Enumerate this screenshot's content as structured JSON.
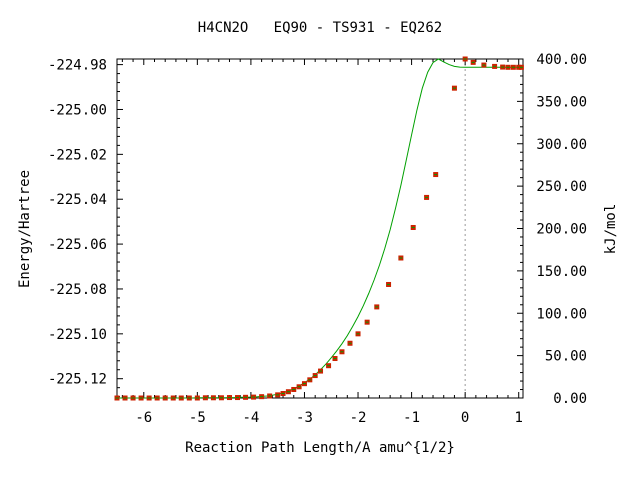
{
  "chart_data": {
    "type": "line",
    "title": "H4CN2O   EQ90 - TS931 - EQ262",
    "xlabel": "Reaction Path Length/A amu^{1/2}",
    "ylabel": "Energy/Hartree",
    "y2label": "kJ/mol",
    "xlim": [
      -6.5,
      1.08
    ],
    "ylim": [
      -225.1286,
      -224.9775
    ],
    "y2lim": [
      0,
      400
    ],
    "x_ticks": [
      -6,
      -5,
      -4,
      -3,
      -2,
      -1,
      0,
      1
    ],
    "x_tick_labels": [
      "-6",
      "-5",
      "-4",
      "-3",
      "-2",
      "-1",
      "0",
      "1"
    ],
    "y_ticks": [
      -225.12,
      -225.1,
      -225.08,
      -225.06,
      -225.04,
      -225.02,
      -225.0,
      -224.98
    ],
    "y_tick_labels": [
      "-225.12",
      "-225.10",
      "-225.08",
      "-225.06",
      "-225.04",
      "-225.02",
      "-225.00",
      "-224.98"
    ],
    "y2_ticks": [
      0,
      50,
      100,
      150,
      200,
      250,
      300,
      350,
      400
    ],
    "y2_tick_labels": [
      "0.00",
      "50.00",
      "100.00",
      "150.00",
      "200.00",
      "250.00",
      "300.00",
      "350.00",
      "400.00"
    ],
    "ts_x": 0,
    "line_color": "#00a000",
    "marker_color": "#cc2200",
    "ts_line_color": "#999999",
    "series": [
      {
        "x": [
          -6.5,
          -6.4,
          -6.3,
          -6.2,
          -6.1,
          -6.0,
          -5.9,
          -5.8,
          -5.7,
          -5.6,
          -5.5,
          -5.4,
          -5.3,
          -5.2,
          -5.1,
          -5.0,
          -4.9,
          -4.8,
          -4.7,
          -4.6,
          -4.5,
          -4.4,
          -4.3,
          -4.2,
          -4.1,
          -4.0,
          -3.9,
          -3.8,
          -3.7,
          -3.6,
          -3.5,
          -3.4,
          -3.3,
          -3.2,
          -3.1,
          -3.0,
          -2.9,
          -2.8,
          -2.7,
          -2.6,
          -2.5,
          -2.4,
          -2.3,
          -2.2,
          -2.1,
          -2.0,
          -1.9,
          -1.8,
          -1.7,
          -1.6,
          -1.5,
          -1.4,
          -1.3,
          -1.2,
          -1.1,
          -1.0,
          -0.9,
          -0.8,
          -0.7,
          -0.6,
          -0.5,
          -0.4,
          -0.3,
          -0.2,
          -0.1,
          0.0,
          0.15,
          0.3,
          0.45,
          0.6,
          0.7,
          0.8,
          0.9,
          1.0,
          1.08
        ],
        "y": [
          -225.1286,
          -225.1286,
          -225.1286,
          -225.1286,
          -225.1286,
          -225.1286,
          -225.1286,
          -225.1286,
          -225.1286,
          -225.1286,
          -225.1286,
          -225.1286,
          -225.1286,
          -225.1286,
          -225.1286,
          -225.1285,
          -225.1285,
          -225.1285,
          -225.1285,
          -225.1285,
          -225.1285,
          -225.1284,
          -225.1284,
          -225.1283,
          -225.1283,
          -225.1282,
          -225.1281,
          -225.1279,
          -225.1277,
          -225.1274,
          -225.1269,
          -225.1263,
          -225.1255,
          -225.1245,
          -225.1233,
          -225.1218,
          -225.1202,
          -225.1182,
          -225.116,
          -225.1135,
          -225.1107,
          -225.1077,
          -225.1044,
          -225.1008,
          -225.0967,
          -225.0923,
          -225.0874,
          -225.082,
          -225.076,
          -225.0693,
          -225.0619,
          -225.0535,
          -225.0441,
          -225.0338,
          -225.0227,
          -225.0113,
          -225.0003,
          -224.9905,
          -224.9834,
          -224.9791,
          -224.9775,
          -224.9788,
          -224.98,
          -224.9808,
          -224.9811,
          -224.9812,
          -224.9812,
          -224.9812,
          -224.9812,
          -224.9812,
          -224.9812,
          -224.9812,
          -224.9812,
          -224.9812,
          -224.9812
        ],
        "markers_x": [
          -6.5,
          -6.35,
          -6.2,
          -6.05,
          -5.9,
          -5.75,
          -5.6,
          -5.45,
          -5.3,
          -5.15,
          -5.0,
          -4.85,
          -4.7,
          -4.55,
          -4.4,
          -4.25,
          -4.1,
          -3.95,
          -3.8,
          -3.65,
          -3.5,
          -3.4,
          -3.3,
          -3.2,
          -3.1,
          -3.0,
          -2.9,
          -2.8,
          -2.7,
          -2.55,
          -2.43,
          -2.3,
          -2.15,
          -2.0,
          -1.83,
          -1.65,
          -1.43,
          -1.2,
          -0.97,
          -0.72,
          -0.55,
          -0.2,
          0.0,
          0.15,
          0.35,
          0.55,
          0.7,
          0.8,
          0.9,
          1.0,
          1.05
        ],
        "markers_y": [
          -225.1286,
          -225.1286,
          -225.1286,
          -225.1286,
          -225.1286,
          -225.1286,
          -225.1286,
          -225.1286,
          -225.1286,
          -225.1286,
          -225.1286,
          -225.1285,
          -225.1285,
          -225.1285,
          -225.1284,
          -225.1284,
          -225.1283,
          -225.1282,
          -225.128,
          -225.1277,
          -225.1272,
          -225.1266,
          -225.1258,
          -225.1248,
          -225.1236,
          -225.1222,
          -225.1205,
          -225.1186,
          -225.1166,
          -225.1142,
          -225.111,
          -225.108,
          -225.1042,
          -225.1,
          -225.0948,
          -225.088,
          -225.078,
          -225.0662,
          -225.0526,
          -225.0392,
          -225.029,
          -224.9905,
          -224.9775,
          -224.979,
          -224.9802,
          -224.9808,
          -224.9811,
          -224.9812,
          -224.9812,
          -224.9812,
          -224.9812
        ]
      }
    ]
  }
}
